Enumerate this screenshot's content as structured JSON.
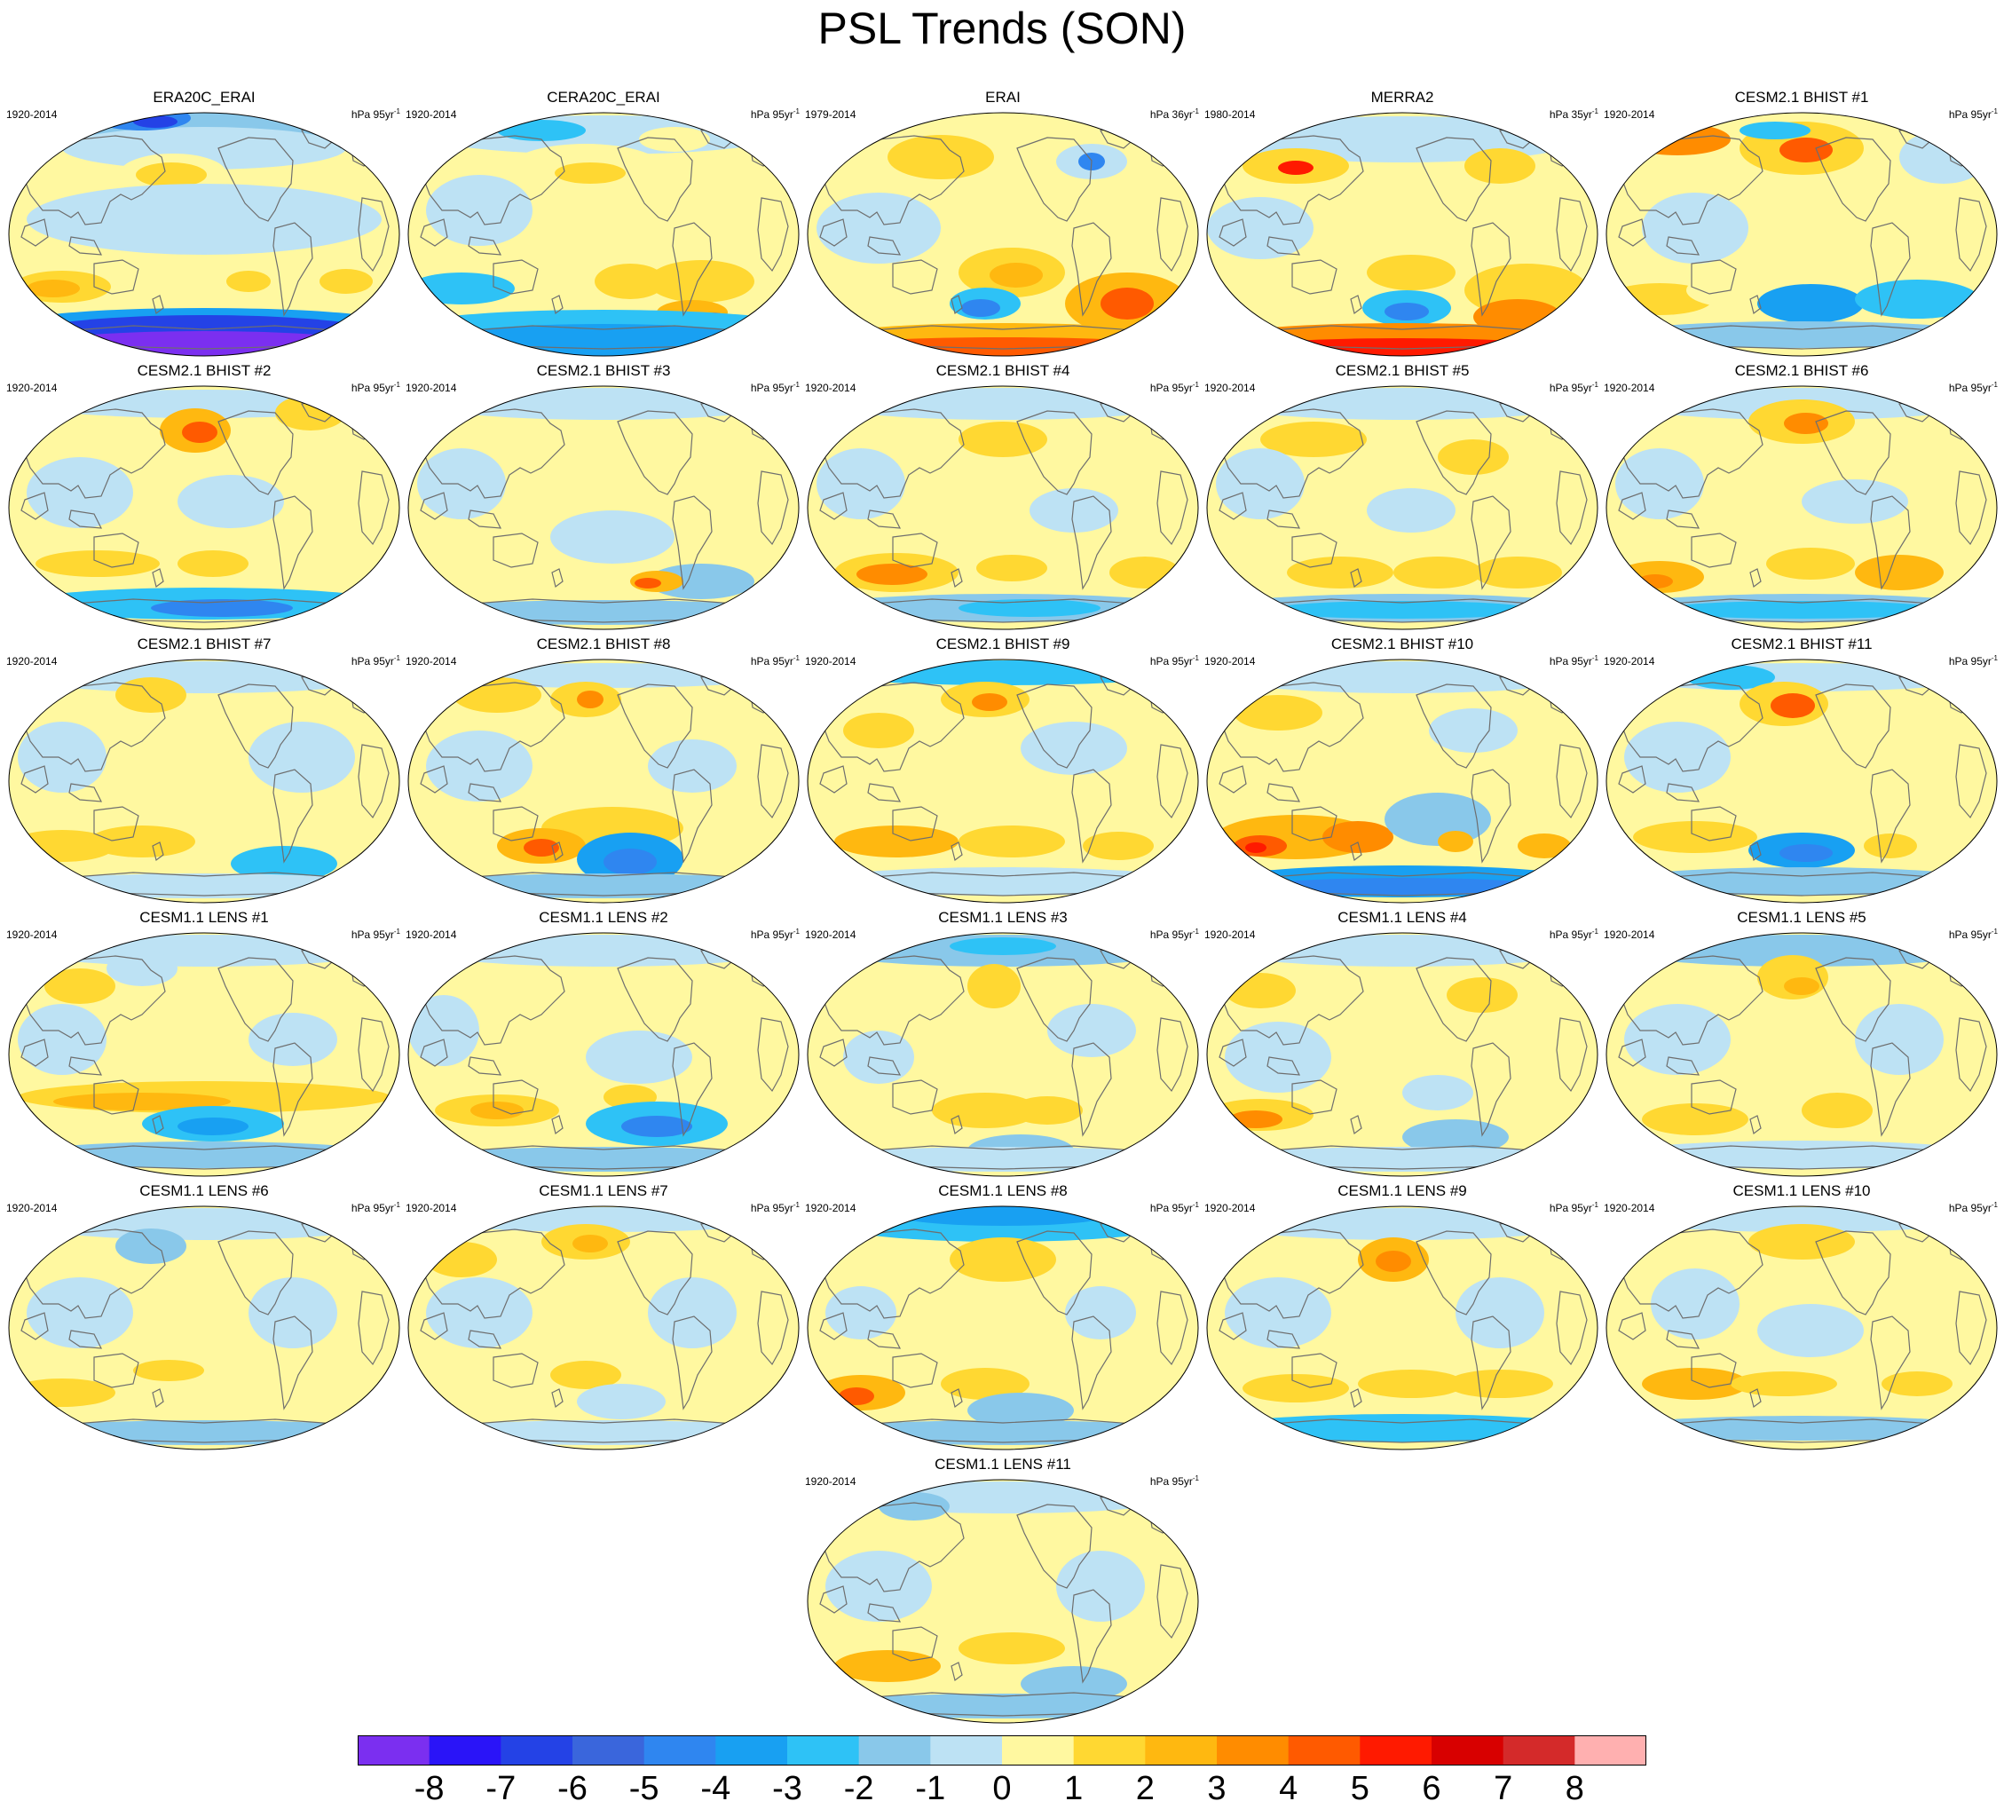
{
  "title": "PSL Trends (SON)",
  "units_text": "hPa",
  "panels": [
    {
      "title": "ERA20C_ERAI",
      "period": "1920-2014",
      "trend_label": "95yr",
      "pattern": "era20c"
    },
    {
      "title": "CERA20C_ERAI",
      "period": "1920-2014",
      "trend_label": "95yr",
      "pattern": "cera20c"
    },
    {
      "title": "ERAI",
      "period": "1979-2014",
      "trend_label": "36yr",
      "pattern": "erai"
    },
    {
      "title": "MERRA2",
      "period": "1980-2014",
      "trend_label": "35yr",
      "pattern": "merra2"
    },
    {
      "title": "CESM2.1 BHIST #1",
      "period": "1920-2014",
      "trend_label": "95yr",
      "pattern": "m1"
    },
    {
      "title": "CESM2.1 BHIST #2",
      "period": "1920-2014",
      "trend_label": "95yr",
      "pattern": "m2"
    },
    {
      "title": "CESM2.1 BHIST #3",
      "period": "1920-2014",
      "trend_label": "95yr",
      "pattern": "m3"
    },
    {
      "title": "CESM2.1 BHIST #4",
      "period": "1920-2014",
      "trend_label": "95yr",
      "pattern": "m4"
    },
    {
      "title": "CESM2.1 BHIST #5",
      "period": "1920-2014",
      "trend_label": "95yr",
      "pattern": "m5"
    },
    {
      "title": "CESM2.1 BHIST #6",
      "period": "1920-2014",
      "trend_label": "95yr",
      "pattern": "m6"
    },
    {
      "title": "CESM2.1 BHIST #7",
      "period": "1920-2014",
      "trend_label": "95yr",
      "pattern": "m7"
    },
    {
      "title": "CESM2.1 BHIST #8",
      "period": "1920-2014",
      "trend_label": "95yr",
      "pattern": "m8"
    },
    {
      "title": "CESM2.1 BHIST #9",
      "period": "1920-2014",
      "trend_label": "95yr",
      "pattern": "m9"
    },
    {
      "title": "CESM2.1 BHIST #10",
      "period": "1920-2014",
      "trend_label": "95yr",
      "pattern": "m10"
    },
    {
      "title": "CESM2.1 BHIST #11",
      "period": "1920-2014",
      "trend_label": "95yr",
      "pattern": "m11"
    },
    {
      "title": "CESM1.1 LENS #1",
      "period": "1920-2014",
      "trend_label": "95yr",
      "pattern": "l1"
    },
    {
      "title": "CESM1.1 LENS #2",
      "period": "1920-2014",
      "trend_label": "95yr",
      "pattern": "l2"
    },
    {
      "title": "CESM1.1 LENS #3",
      "period": "1920-2014",
      "trend_label": "95yr",
      "pattern": "l3"
    },
    {
      "title": "CESM1.1 LENS #4",
      "period": "1920-2014",
      "trend_label": "95yr",
      "pattern": "l4"
    },
    {
      "title": "CESM1.1 LENS #5",
      "period": "1920-2014",
      "trend_label": "95yr",
      "pattern": "l5"
    },
    {
      "title": "CESM1.1 LENS #6",
      "period": "1920-2014",
      "trend_label": "95yr",
      "pattern": "l6"
    },
    {
      "title": "CESM1.1 LENS #7",
      "period": "1920-2014",
      "trend_label": "95yr",
      "pattern": "l7"
    },
    {
      "title": "CESM1.1 LENS #8",
      "period": "1920-2014",
      "trend_label": "95yr",
      "pattern": "l8"
    },
    {
      "title": "CESM1.1 LENS #9",
      "period": "1920-2014",
      "trend_label": "95yr",
      "pattern": "l9"
    },
    {
      "title": "CESM1.1 LENS #10",
      "period": "1920-2014",
      "trend_label": "95yr",
      "pattern": "l10"
    },
    {
      "title": "CESM1.1 LENS #11",
      "period": "1920-2014",
      "trend_label": "95yr",
      "pattern": "l11"
    }
  ],
  "colorbar": {
    "labels": [
      "-8",
      "-7",
      "-6",
      "-5",
      "-4",
      "-3",
      "-2",
      "-1",
      "0",
      "1",
      "2",
      "3",
      "4",
      "5",
      "6",
      "7",
      "8"
    ],
    "colors": [
      "#7b2ff0",
      "#2a14f8",
      "#2442e6",
      "#3a66dc",
      "#2f86f0",
      "#18a0f2",
      "#2ec2f6",
      "#89c8ea",
      "#bde2f4",
      "#fff8a0",
      "#ffd832",
      "#ffb810",
      "#ff8c00",
      "#ff5a00",
      "#ff1a00",
      "#d80000",
      "#d42a2a",
      "#ffb0b0"
    ]
  }
}
